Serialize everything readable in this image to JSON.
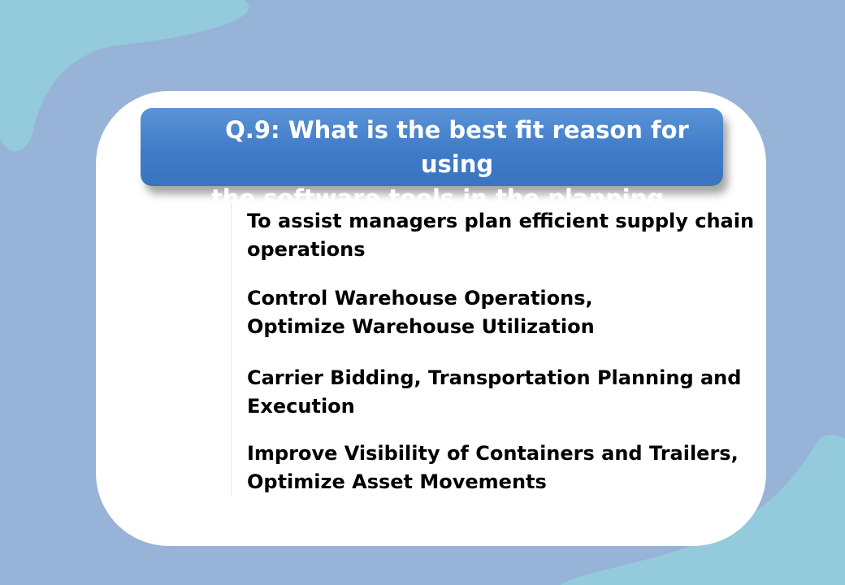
{
  "question": {
    "line1": "Q.9: What is the best fit reason for using",
    "line2": "the software tools in the planning support?"
  },
  "options": [
    {
      "line1": "To assist managers plan efficient supply chain",
      "line2": "operations"
    },
    {
      "line1": "Control Warehouse Operations,",
      "line2": "Optimize Warehouse Utilization"
    },
    {
      "line1": "Carrier Bidding, Transportation Planning and",
      "line2": "Execution"
    },
    {
      "line1": "Improve Visibility of Containers and Trailers,",
      "line2": "Optimize Asset Movements"
    }
  ],
  "colors": {
    "background": "#97b3d8",
    "blob": "#93cbdc",
    "card": "#ffffff",
    "banner": "#4a86cf",
    "text": "#000000"
  }
}
